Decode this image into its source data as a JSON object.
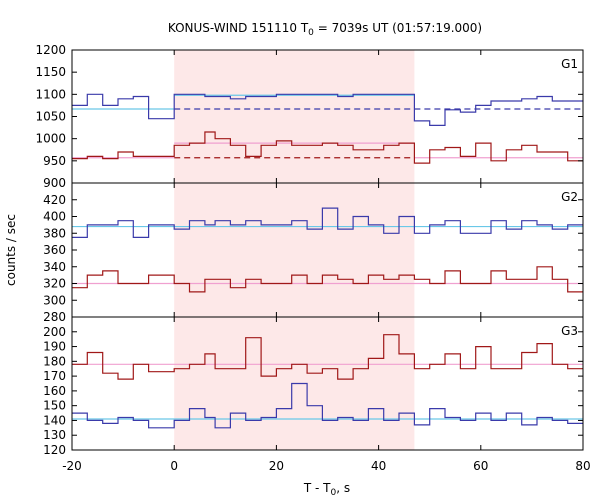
{
  "chart_data": {
    "type": "line",
    "title": {
      "prefix": "KONUS-WIND 151110 T",
      "sub": "0",
      "suffix": " = 7039s UT (01:57:19.000)"
    },
    "xlabel": {
      "prefix": "T - T",
      "sub": "0",
      "suffix": ", s"
    },
    "ylabel": "counts / sec",
    "xlim": [
      -20,
      80
    ],
    "x_ticks": [
      -20,
      0,
      20,
      40,
      60,
      80
    ],
    "shaded_interval": [
      0,
      47
    ],
    "colors": {
      "blue": "#3a3aaa",
      "red": "#a01818",
      "bg_blue": "#6ac8e8",
      "bg_pink": "#f0a0d0",
      "shade": "#fde8e8"
    },
    "bin_edges": [
      -20,
      -17,
      -14,
      -11,
      -8,
      -5,
      0,
      3,
      6,
      8,
      11,
      14,
      17,
      20,
      23,
      26,
      29,
      32,
      35,
      38,
      41,
      44,
      47,
      50,
      53,
      56,
      59,
      62,
      65,
      68,
      71,
      74,
      77,
      80
    ],
    "panels": [
      {
        "label": "G1",
        "ylim": [
          900,
          1200
        ],
        "y_ticks": [
          900,
          950,
          1000,
          1050,
          1100,
          1150,
          1200
        ],
        "series": [
          {
            "color": "blue",
            "values": [
              1075,
              1100,
              1075,
              1090,
              1095,
              1045,
              1100,
              1100,
              1095,
              1095,
              1090,
              1095,
              1095,
              1100,
              1100,
              1100,
              1100,
              1095,
              1100,
              1100,
              1100,
              1100,
              1040,
              1030,
              1065,
              1060,
              1075,
              1085,
              1085,
              1090,
              1095,
              1085,
              1085
            ]
          },
          {
            "color": "red",
            "values": [
              955,
              960,
              955,
              970,
              960,
              960,
              985,
              990,
              1015,
              1000,
              985,
              960,
              985,
              995,
              985,
              985,
              990,
              985,
              975,
              975,
              985,
              990,
              945,
              975,
              980,
              960,
              990,
              950,
              975,
              985,
              970,
              970,
              950
            ]
          }
        ],
        "backgrounds": [
          {
            "color": "bg_blue",
            "style": "solid",
            "from": -20,
            "to": 0,
            "value": 1067
          },
          {
            "color": "bg_blue",
            "style": "solid",
            "from": 0,
            "to": 47,
            "value": 1098
          },
          {
            "color": "blue",
            "style": "dashed",
            "from": 0,
            "to": 47,
            "value": 1067
          },
          {
            "color": "blue",
            "style": "dashed",
            "from": 47,
            "to": 80,
            "value": 1067
          },
          {
            "color": "bg_pink",
            "style": "solid",
            "from": -20,
            "to": 0,
            "value": 957
          },
          {
            "color": "bg_pink",
            "style": "solid",
            "from": 0,
            "to": 47,
            "value": 990
          },
          {
            "color": "red",
            "style": "dashed",
            "from": 0,
            "to": 47,
            "value": 957
          },
          {
            "color": "bg_pink",
            "style": "solid",
            "from": 47,
            "to": 80,
            "value": 957
          }
        ]
      },
      {
        "label": "G2",
        "ylim": [
          280,
          440
        ],
        "y_ticks": [
          280,
          300,
          320,
          340,
          360,
          380,
          400,
          420
        ],
        "series": [
          {
            "color": "blue",
            "values": [
              375,
              390,
              390,
              395,
              375,
              390,
              385,
              395,
              390,
              395,
              390,
              395,
              390,
              390,
              395,
              385,
              410,
              385,
              400,
              390,
              380,
              400,
              380,
              390,
              395,
              380,
              380,
              395,
              385,
              395,
              390,
              385,
              390
            ]
          },
          {
            "color": "red",
            "values": [
              315,
              330,
              335,
              320,
              320,
              330,
              320,
              310,
              325,
              325,
              315,
              325,
              320,
              320,
              330,
              320,
              330,
              325,
              320,
              330,
              325,
              330,
              325,
              320,
              335,
              320,
              320,
              335,
              325,
              325,
              340,
              325,
              310
            ]
          }
        ],
        "backgrounds": [
          {
            "color": "bg_blue",
            "style": "solid",
            "from": -20,
            "to": 80,
            "value": 388
          },
          {
            "color": "bg_pink",
            "style": "solid",
            "from": -20,
            "to": 80,
            "value": 320
          }
        ]
      },
      {
        "label": "G3",
        "ylim": [
          120,
          210
        ],
        "y_ticks": [
          120,
          130,
          140,
          150,
          160,
          170,
          180,
          190,
          200
        ],
        "series": [
          {
            "color": "blue",
            "values": [
              145,
              140,
              138,
              142,
              140,
              135,
              140,
              148,
              142,
              135,
              145,
              140,
              142,
              148,
              165,
              150,
              140,
              142,
              140,
              148,
              140,
              145,
              137,
              148,
              142,
              140,
              145,
              140,
              145,
              137,
              142,
              140,
              138
            ]
          },
          {
            "color": "red",
            "values": [
              178,
              186,
              172,
              168,
              178,
              173,
              175,
              178,
              185,
              175,
              175,
              196,
              170,
              175,
              178,
              172,
              175,
              168,
              175,
              182,
              198,
              185,
              175,
              178,
              185,
              175,
              190,
              175,
              175,
              186,
              192,
              178,
              175
            ]
          }
        ],
        "backgrounds": [
          {
            "color": "bg_blue",
            "style": "solid",
            "from": -20,
            "to": 80,
            "value": 141
          },
          {
            "color": "bg_pink",
            "style": "solid",
            "from": -20,
            "to": 80,
            "value": 178
          }
        ]
      }
    ]
  }
}
